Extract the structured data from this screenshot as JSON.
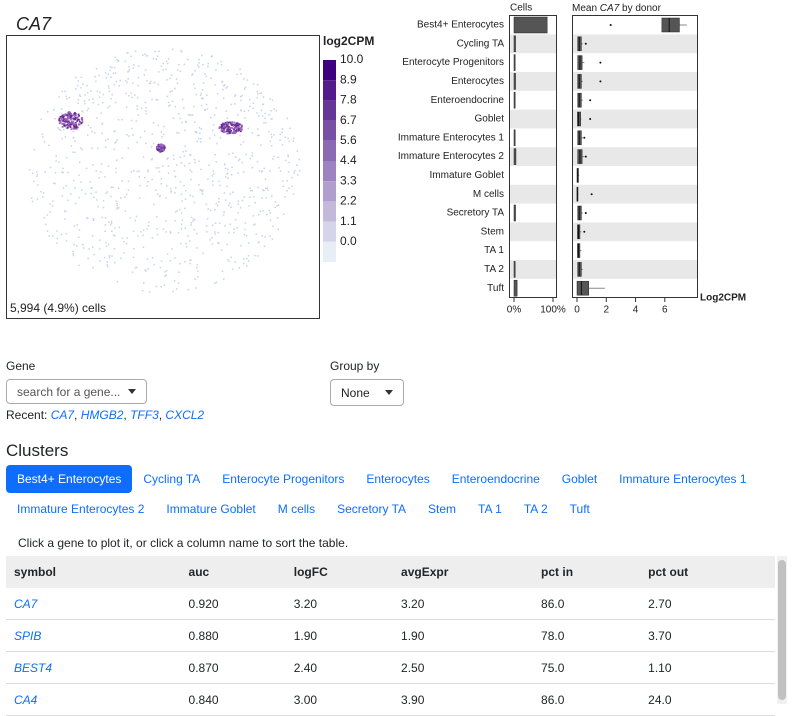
{
  "embedding": {
    "gene": "CA7",
    "legend_title": "log2CPM",
    "legend_labels": [
      "10.0",
      "8.9",
      "7.8",
      "6.7",
      "5.6",
      "4.4",
      "3.3",
      "2.2",
      "1.1",
      "0.0"
    ],
    "cell_count": "5,994 (4.9%) cells"
  },
  "cluster_panel": {
    "cells_title": "Cells",
    "expr_title_prefix": "Mean",
    "expr_title_gene": "CA7",
    "expr_title_suffix": "by donor",
    "clusters": [
      "Best4+ Enterocytes",
      "Cycling TA",
      "Enterocyte Progenitors",
      "Enterocytes",
      "Enteroendocrine",
      "Goblet",
      "Immature Enterocytes 1",
      "Immature Enterocytes 2",
      "Immature Goblet",
      "M cells",
      "Secretory TA",
      "Stem",
      "TA 1",
      "TA 2",
      "Tuft"
    ],
    "cells_pct": [
      85,
      4,
      3,
      4,
      3,
      0,
      3,
      5,
      0,
      0,
      4,
      0,
      0,
      3,
      8
    ],
    "cells_ticks": [
      {
        "value": 0,
        "label": "0%"
      },
      {
        "value": 100,
        "label": "100%"
      }
    ],
    "cells_lim": [
      0,
      100
    ],
    "box_q1": [
      5.8,
      0.05,
      0.05,
      0.05,
      0.05,
      0.03,
      0.05,
      0.05,
      0.0,
      0.0,
      0.05,
      0.03,
      0.03,
      0.05,
      0.0
    ],
    "box_median": [
      6.3,
      0.15,
      0.2,
      0.15,
      0.15,
      0.1,
      0.15,
      0.2,
      0.05,
      0.02,
      0.15,
      0.1,
      0.1,
      0.15,
      0.3
    ],
    "box_q3": [
      7.0,
      0.3,
      0.35,
      0.3,
      0.3,
      0.25,
      0.3,
      0.35,
      0.1,
      0.05,
      0.3,
      0.2,
      0.2,
      0.3,
      0.8
    ],
    "box_whisker_hi": [
      7.5,
      0.4,
      0.5,
      0.4,
      0.4,
      0.3,
      0.4,
      0.5,
      0.15,
      0.1,
      0.4,
      0.3,
      0.3,
      0.4,
      1.9
    ],
    "box_outlier": [
      2.3,
      0.6,
      1.6,
      1.6,
      0.9,
      0.9,
      0.5,
      0.6,
      null,
      1.0,
      0.6,
      0.5,
      null,
      null,
      null
    ],
    "expr_lim": [
      0,
      8.2
    ],
    "expr_ticks": [
      0,
      2,
      4,
      6
    ],
    "expr_axis_label": "Log2CPM"
  },
  "controls": {
    "gene_label": "Gene",
    "gene_placeholder": "search for a gene...",
    "recent_label": "Recent:",
    "recent_genes": [
      "CA7",
      "HMGB2",
      "TFF3",
      "CXCL2"
    ],
    "group_label": "Group by",
    "group_value": "None"
  },
  "clusters_section": {
    "title": "Clusters",
    "tabs": [
      "Best4+ Enterocytes",
      "Cycling TA",
      "Enterocyte Progenitors",
      "Enterocytes",
      "Enteroendocrine",
      "Goblet",
      "Immature Enterocytes 1",
      "Immature Enterocytes 2",
      "Immature Goblet",
      "M cells",
      "Secretory TA",
      "Stem",
      "TA 1",
      "TA 2",
      "Tuft"
    ],
    "hint": "Click a gene to plot it, or click a column name to sort the table."
  },
  "table": {
    "columns": [
      "symbol",
      "auc",
      "logFC",
      "avgExpr",
      "pct in",
      "pct out"
    ],
    "rows": [
      [
        "CA7",
        "0.920",
        "3.20",
        "3.20",
        "86.0",
        "2.70"
      ],
      [
        "SPIB",
        "0.880",
        "1.90",
        "1.90",
        "78.0",
        "3.70"
      ],
      [
        "BEST4",
        "0.870",
        "2.40",
        "2.50",
        "75.0",
        "1.10"
      ],
      [
        "CA4",
        "0.840",
        "3.00",
        "3.90",
        "86.0",
        "24.0"
      ]
    ]
  }
}
